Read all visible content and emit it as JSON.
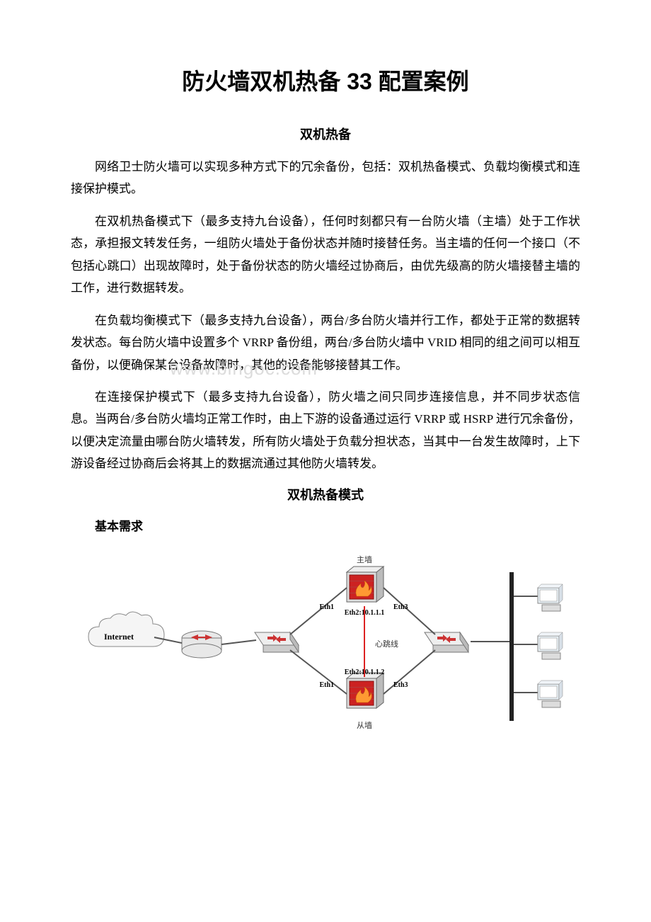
{
  "title": "防火墙双机热备 33 配置案例",
  "subtitle1": "双机热备",
  "paragraphs": [
    "网络卫士防火墙可以实现多种方式下的冗余备份，包括：双机热备模式、负载均衡模式和连接保护模式。",
    "在双机热备模式下（最多支持九台设备），任何时刻都只有一台防火墙（主墙）处于工作状态，承担报文转发任务，一组防火墙处于备份状态并随时接替任务。当主墙的任何一个接口（不包括心跳口）出现故障时，处于备份状态的防火墙经过协商后，由优先级高的防火墙接替主墙的工作，进行数据转发。",
    "在负载均衡模式下（最多支持九台设备），两台/多台防火墙并行工作，都处于正常的数据转发状态。每台防火墙中设置多个 VRRP 备份组，两台/多台防火墙中 VRID 相同的组之间可以相互备份，以便确保某台设备故障时，其他的设备能够接替其工作。",
    "在连接保护模式下（最多支持九台设备），防火墙之间只同步连接信息，并不同步状态信息。当两台/多台防火墙均正常工作时，由上下游的设备通过运行 VRRP 或 HSRP 进行冗余备份，以便决定流量由哪台防火墙转发，所有防火墙处于负载分担状态，当其中一台发生故障时，上下游设备经过协商后会将其上的数据流通过其他防火墙转发。"
  ],
  "subtitle2": "双机热备模式",
  "section_heading": "基本需求",
  "watermark": "www.bingoc.com",
  "diagram": {
    "labels": {
      "internet": "Internet",
      "top_fw": "主墙",
      "bottom_fw": "从墙",
      "eth1": "Eth1",
      "eth3": "Eth3",
      "eth2_top": "Eth2:10.1.1.1",
      "eth2_bottom": "Eth2:10.1.1.2",
      "heartbeat": "心跳线"
    },
    "colors": {
      "cloud_fill": "#f5f5f5",
      "cloud_stroke": "#888888",
      "router_fill": "#e8e8e8",
      "router_arrow": "#cc3333",
      "switch_fill": "#eeeeee",
      "switch_arrow": "#cc3333",
      "firewall_body": "#dddddd",
      "firewall_red": "#cc2222",
      "firewall_flame": "#ff9933",
      "link_stroke": "#555555",
      "heartbeat_stroke": "#dd2222",
      "lan_bar": "#222222",
      "pc_fill": "#e8f0f5",
      "pc_stroke": "#888888",
      "label_text": "#333333",
      "label_bold": "#000000"
    },
    "font_sizes": {
      "internet": 12,
      "node_label": 11,
      "eth_label": 10,
      "heartbeat": 11
    }
  }
}
